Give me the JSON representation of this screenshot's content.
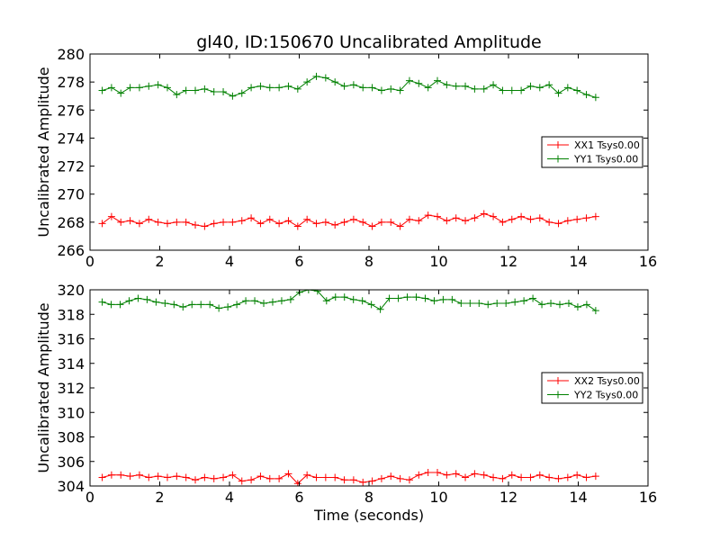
{
  "chart_data": [
    {
      "type": "line",
      "title": "gl40, ID:150670 Uncalibrated Amplitude",
      "xlabel": "",
      "ylabel": "Uncalibrated Amplitude",
      "xlim": [
        0,
        16
      ],
      "ylim": [
        266,
        280
      ],
      "xticks": [
        0,
        2,
        4,
        6,
        8,
        10,
        12,
        14,
        16
      ],
      "yticks": [
        266,
        268,
        270,
        272,
        274,
        276,
        278,
        280
      ],
      "legend_position": "center-right",
      "series": [
        {
          "name": "XX1 Tsys0.00",
          "color": "#ff0000",
          "values": [
            267.9,
            268.4,
            268.0,
            268.1,
            267.9,
            268.2,
            268.0,
            267.9,
            268.0,
            268.0,
            267.8,
            267.7,
            267.9,
            268.0,
            268.0,
            268.1,
            268.3,
            267.9,
            268.2,
            267.9,
            268.1,
            267.7,
            268.2,
            267.9,
            268.0,
            267.8,
            268.0,
            268.2,
            268.0,
            267.7,
            268.0,
            268.0,
            267.7,
            268.2,
            268.1,
            268.5,
            268.4,
            268.1,
            268.3,
            268.1,
            268.3,
            268.6,
            268.4,
            268.0,
            268.2,
            268.4,
            268.2,
            268.3,
            268.0,
            267.9,
            268.1,
            268.2,
            268.3,
            268.4
          ]
        },
        {
          "name": "YY1 Tsys0.00",
          "color": "#008000",
          "values": [
            277.4,
            277.6,
            277.2,
            277.6,
            277.6,
            277.7,
            277.8,
            277.6,
            277.1,
            277.4,
            277.4,
            277.5,
            277.3,
            277.3,
            277.0,
            277.2,
            277.6,
            277.7,
            277.6,
            277.6,
            277.7,
            277.5,
            278.0,
            278.4,
            278.3,
            278.0,
            277.7,
            277.8,
            277.6,
            277.6,
            277.4,
            277.5,
            277.4,
            278.1,
            277.9,
            277.6,
            278.1,
            277.8,
            277.7,
            277.7,
            277.5,
            277.5,
            277.8,
            277.4,
            277.4,
            277.4,
            277.7,
            277.6,
            277.8,
            277.2,
            277.6,
            277.4,
            277.1,
            276.9
          ]
        }
      ]
    },
    {
      "type": "line",
      "title": "",
      "xlabel": "Time (seconds)",
      "ylabel": "Uncalibrated Amplitude",
      "xlim": [
        0,
        16
      ],
      "ylim": [
        304,
        320
      ],
      "xticks": [
        0,
        2,
        4,
        6,
        8,
        10,
        12,
        14,
        16
      ],
      "yticks": [
        304,
        306,
        308,
        310,
        312,
        314,
        316,
        318,
        320
      ],
      "legend_position": "center-right",
      "series": [
        {
          "name": "XX2 Tsys0.00",
          "color": "#ff0000",
          "values": [
            304.7,
            304.9,
            304.9,
            304.8,
            304.9,
            304.7,
            304.8,
            304.7,
            304.8,
            304.7,
            304.5,
            304.7,
            304.6,
            304.7,
            304.9,
            304.4,
            304.5,
            304.8,
            304.6,
            304.6,
            305.0,
            304.2,
            304.9,
            304.7,
            304.7,
            304.7,
            304.5,
            304.5,
            304.3,
            304.4,
            304.6,
            304.8,
            304.6,
            304.5,
            304.9,
            305.1,
            305.1,
            304.9,
            305.0,
            304.7,
            305.0,
            304.9,
            304.7,
            304.6,
            304.9,
            304.7,
            304.7,
            304.9,
            304.7,
            304.6,
            304.7,
            304.9,
            304.7,
            304.8
          ]
        },
        {
          "name": "YY2 Tsys0.00",
          "color": "#008000",
          "values": [
            319.0,
            318.8,
            318.8,
            319.1,
            319.3,
            319.2,
            319.0,
            318.9,
            318.8,
            318.6,
            318.8,
            318.8,
            318.8,
            318.5,
            318.6,
            318.8,
            319.1,
            319.1,
            318.9,
            319.0,
            319.1,
            319.2,
            319.8,
            320.0,
            319.9,
            319.1,
            319.4,
            319.4,
            319.2,
            319.1,
            318.8,
            318.4,
            319.3,
            319.3,
            319.4,
            319.4,
            319.3,
            319.1,
            319.2,
            319.2,
            318.9,
            318.9,
            318.9,
            318.8,
            318.9,
            318.9,
            319.0,
            319.1,
            319.3,
            318.8,
            318.9,
            318.8,
            318.9,
            318.6,
            318.8,
            318.3
          ]
        }
      ]
    }
  ]
}
